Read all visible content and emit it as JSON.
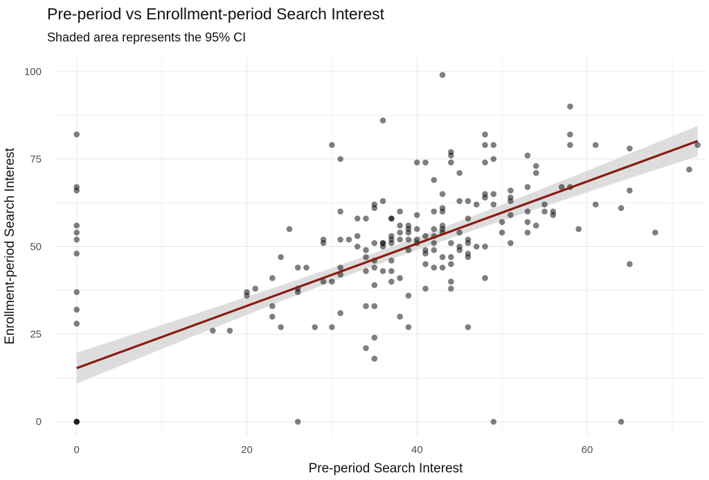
{
  "chart_data": {
    "type": "scatter",
    "title": "Pre-period vs Enrollment-period Search Interest",
    "subtitle": "Shaded area represents the 95% CI",
    "xlabel": "Pre-period Search Interest",
    "ylabel": "Enrollment-period Search Interest",
    "xlim": [
      -2.5,
      74
    ],
    "ylim": [
      -4,
      104
    ],
    "xticks": [
      0,
      20,
      40,
      60
    ],
    "yticks": [
      0,
      25,
      50,
      75,
      100
    ],
    "grid": true,
    "colors": {
      "points": "#000000",
      "fit_line": "#8b1a10",
      "ci_band": "#d9d9d9",
      "grid": "#ebebeb"
    },
    "fit": {
      "intercept": 15.3,
      "slope": 0.888,
      "x_range": [
        0,
        73
      ],
      "ci_halfwidth_at_ends": 4.4,
      "ci_halfwidth_at_mean": 1.8,
      "x_mean": 37
    },
    "points": [
      [
        0,
        0
      ],
      [
        0,
        0
      ],
      [
        0,
        0
      ],
      [
        0,
        28
      ],
      [
        0,
        32
      ],
      [
        0,
        37
      ],
      [
        0,
        48
      ],
      [
        0,
        52
      ],
      [
        0,
        54
      ],
      [
        0,
        56
      ],
      [
        0,
        66
      ],
      [
        0,
        67
      ],
      [
        0,
        82
      ],
      [
        16,
        26
      ],
      [
        18,
        26
      ],
      [
        20,
        36
      ],
      [
        20,
        37
      ],
      [
        21,
        38
      ],
      [
        23,
        30
      ],
      [
        23,
        33
      ],
      [
        23,
        41
      ],
      [
        24,
        27
      ],
      [
        24,
        47
      ],
      [
        25,
        55
      ],
      [
        26,
        0
      ],
      [
        26,
        37
      ],
      [
        26,
        38
      ],
      [
        26,
        44
      ],
      [
        27,
        44
      ],
      [
        28,
        27
      ],
      [
        29,
        40
      ],
      [
        29,
        51
      ],
      [
        29,
        52
      ],
      [
        30,
        27
      ],
      [
        30,
        40
      ],
      [
        30,
        79
      ],
      [
        31,
        31
      ],
      [
        31,
        42
      ],
      [
        31,
        44
      ],
      [
        31,
        52
      ],
      [
        31,
        60
      ],
      [
        31,
        75
      ],
      [
        32,
        52
      ],
      [
        33,
        50
      ],
      [
        33,
        53
      ],
      [
        33,
        58
      ],
      [
        34,
        21
      ],
      [
        34,
        33
      ],
      [
        34,
        43
      ],
      [
        34,
        47
      ],
      [
        34,
        49
      ],
      [
        34,
        58
      ],
      [
        35,
        18
      ],
      [
        35,
        24
      ],
      [
        35,
        33
      ],
      [
        35,
        39
      ],
      [
        35,
        44
      ],
      [
        35,
        46
      ],
      [
        35,
        51
      ],
      [
        35,
        61
      ],
      [
        35,
        62
      ],
      [
        36,
        43
      ],
      [
        36,
        50
      ],
      [
        36,
        51
      ],
      [
        36,
        51
      ],
      [
        36,
        63
      ],
      [
        36,
        86
      ],
      [
        37,
        40
      ],
      [
        37,
        43
      ],
      [
        37,
        46
      ],
      [
        37,
        51
      ],
      [
        37,
        52
      ],
      [
        37,
        53
      ],
      [
        37,
        58
      ],
      [
        37,
        58
      ],
      [
        38,
        30
      ],
      [
        38,
        41
      ],
      [
        38,
        52
      ],
      [
        38,
        54
      ],
      [
        38,
        56
      ],
      [
        38,
        60
      ],
      [
        39,
        27
      ],
      [
        39,
        36
      ],
      [
        39,
        49
      ],
      [
        39,
        52
      ],
      [
        39,
        54
      ],
      [
        39,
        55
      ],
      [
        39,
        56
      ],
      [
        40,
        51
      ],
      [
        40,
        52
      ],
      [
        40,
        55
      ],
      [
        40,
        59
      ],
      [
        40,
        74
      ],
      [
        41,
        38
      ],
      [
        41,
        45
      ],
      [
        41,
        48
      ],
      [
        41,
        49
      ],
      [
        41,
        53
      ],
      [
        41,
        74
      ],
      [
        42,
        44
      ],
      [
        42,
        49
      ],
      [
        42,
        51
      ],
      [
        42,
        53
      ],
      [
        42,
        55
      ],
      [
        42,
        60
      ],
      [
        42,
        69
      ],
      [
        43,
        44
      ],
      [
        43,
        47
      ],
      [
        43,
        54
      ],
      [
        43,
        55
      ],
      [
        43,
        56
      ],
      [
        43,
        60
      ],
      [
        43,
        61
      ],
      [
        43,
        65
      ],
      [
        43,
        99
      ],
      [
        44,
        38
      ],
      [
        44,
        40
      ],
      [
        44,
        45
      ],
      [
        44,
        47
      ],
      [
        44,
        51
      ],
      [
        44,
        74
      ],
      [
        44,
        76
      ],
      [
        44,
        77
      ],
      [
        45,
        49
      ],
      [
        45,
        50
      ],
      [
        45,
        54
      ],
      [
        45,
        63
      ],
      [
        45,
        71
      ],
      [
        46,
        27
      ],
      [
        46,
        47
      ],
      [
        46,
        48
      ],
      [
        46,
        51
      ],
      [
        46,
        52
      ],
      [
        46,
        58
      ],
      [
        46,
        63
      ],
      [
        47,
        50
      ],
      [
        47,
        62
      ],
      [
        48,
        41
      ],
      [
        48,
        50
      ],
      [
        48,
        64
      ],
      [
        48,
        65
      ],
      [
        48,
        74
      ],
      [
        48,
        79
      ],
      [
        48,
        82
      ],
      [
        49,
        0
      ],
      [
        49,
        62
      ],
      [
        49,
        65
      ],
      [
        49,
        75
      ],
      [
        49,
        79
      ],
      [
        50,
        54
      ],
      [
        50,
        57
      ],
      [
        51,
        51
      ],
      [
        51,
        59
      ],
      [
        51,
        63
      ],
      [
        51,
        64
      ],
      [
        51,
        66
      ],
      [
        53,
        54
      ],
      [
        53,
        57
      ],
      [
        53,
        60
      ],
      [
        53,
        67
      ],
      [
        53,
        76
      ],
      [
        54,
        56
      ],
      [
        54,
        71
      ],
      [
        54,
        73
      ],
      [
        55,
        60
      ],
      [
        55,
        62
      ],
      [
        56,
        59
      ],
      [
        56,
        60
      ],
      [
        57,
        67
      ],
      [
        58,
        67
      ],
      [
        58,
        79
      ],
      [
        58,
        82
      ],
      [
        58,
        90
      ],
      [
        59,
        55
      ],
      [
        61,
        62
      ],
      [
        61,
        79
      ],
      [
        64,
        0
      ],
      [
        64,
        61
      ],
      [
        65,
        45
      ],
      [
        65,
        66
      ],
      [
        65,
        78
      ],
      [
        68,
        54
      ],
      [
        72,
        72
      ],
      [
        73,
        79
      ]
    ]
  }
}
